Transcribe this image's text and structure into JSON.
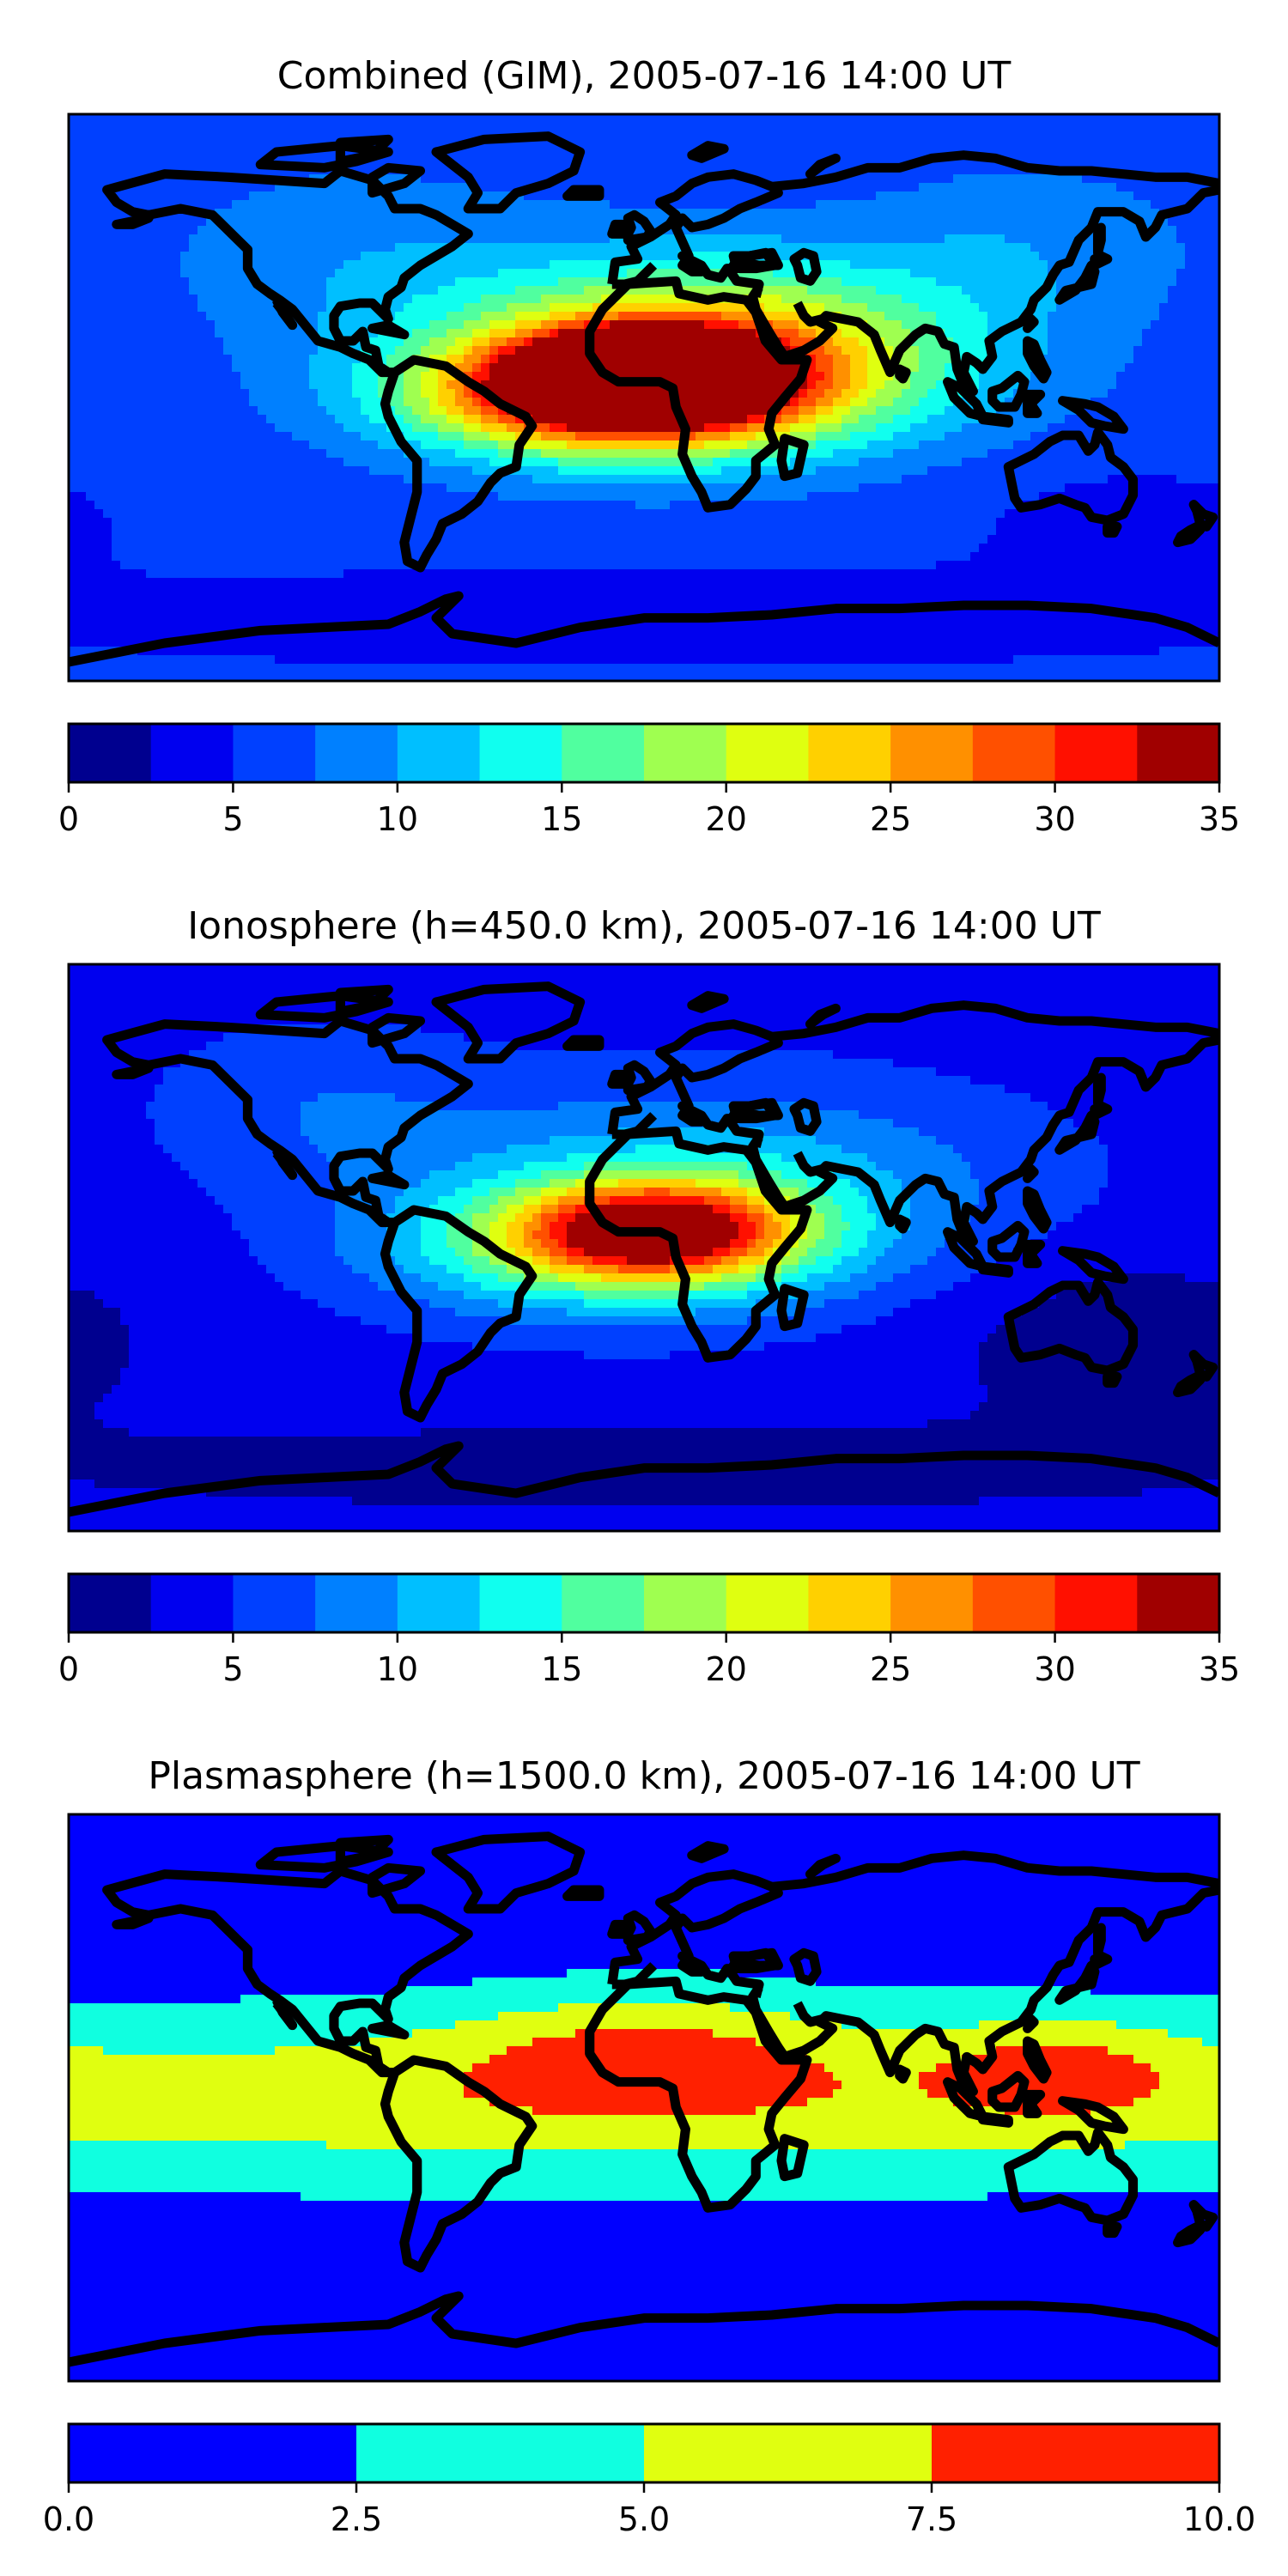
{
  "chart_data": [
    {
      "type": "heatmap",
      "title": "Combined (GIM), 2005-07-16 14:00 UT",
      "xlim": [
        -180,
        180
      ],
      "ylim": [
        -90,
        90
      ],
      "colorbar": {
        "levels": [
          0,
          2.5,
          5,
          7.5,
          10,
          12.5,
          15,
          17.5,
          20,
          22.5,
          25,
          27.5,
          30,
          32.5,
          35
        ],
        "tick_labels": [
          "0",
          "5",
          "10",
          "15",
          "20",
          "25",
          "30",
          "35"
        ],
        "tick_values": [
          0,
          5,
          10,
          15,
          20,
          25,
          30,
          35
        ],
        "colors": [
          "#00008f",
          "#0000ef",
          "#0040ff",
          "#0080ff",
          "#00bfff",
          "#10ffef",
          "#50ff9f",
          "#9fff50",
          "#dfff10",
          "#ffd000",
          "#ff9000",
          "#ff5000",
          "#ff1000",
          "#a00000"
        ]
      },
      "background_value": 6,
      "blobs": [
        {
          "lon": 0,
          "lat": 8,
          "value": 30,
          "slon": 35,
          "slat": 12
        },
        {
          "lon": -10,
          "lat": 0,
          "value": 24,
          "slon": 60,
          "slat": 18
        },
        {
          "lon": 20,
          "lat": 15,
          "value": 20,
          "slon": 80,
          "slat": 28
        },
        {
          "lon": -90,
          "lat": 45,
          "value": 3,
          "slon": 60,
          "slat": 30
        },
        {
          "lon": 120,
          "lat": 50,
          "value": 3,
          "slon": 50,
          "slat": 25
        },
        {
          "lon": 0,
          "lat": -70,
          "value": -3,
          "slon": 200,
          "slat": 15
        },
        {
          "lon": 150,
          "lat": -40,
          "value": -2,
          "slon": 50,
          "slat": 20
        }
      ]
    },
    {
      "type": "heatmap",
      "title": "Ionosphere  (h=450.0 km), 2005-07-16 14:00 UT",
      "xlim": [
        -180,
        180
      ],
      "ylim": [
        -90,
        90
      ],
      "colorbar": {
        "levels": [
          0,
          2.5,
          5,
          7.5,
          10,
          12.5,
          15,
          17.5,
          20,
          22.5,
          25,
          27.5,
          30,
          32.5,
          35
        ],
        "tick_labels": [
          "0",
          "5",
          "10",
          "15",
          "20",
          "25",
          "30",
          "35"
        ],
        "tick_values": [
          0,
          5,
          10,
          15,
          20,
          25,
          30,
          35
        ],
        "colors": [
          "#00008f",
          "#0000ef",
          "#0040ff",
          "#0080ff",
          "#00bfff",
          "#10ffef",
          "#50ff9f",
          "#9fff50",
          "#dfff10",
          "#ffd000",
          "#ff9000",
          "#ff5000",
          "#ff1000",
          "#a00000"
        ]
      },
      "background_value": 4,
      "blobs": [
        {
          "lon": 5,
          "lat": 6,
          "value": 20,
          "slon": 40,
          "slat": 14
        },
        {
          "lon": -10,
          "lat": 0,
          "value": 14,
          "slon": 65,
          "slat": 20
        },
        {
          "lon": 20,
          "lat": 20,
          "value": 8,
          "slon": 90,
          "slat": 30
        },
        {
          "lon": -100,
          "lat": 45,
          "value": 3,
          "slon": 50,
          "slat": 25
        },
        {
          "lon": 150,
          "lat": -30,
          "value": -3,
          "slon": 60,
          "slat": 30
        },
        {
          "lon": 0,
          "lat": -70,
          "value": -3,
          "slon": 200,
          "slat": 15
        }
      ]
    },
    {
      "type": "heatmap",
      "title": "Plasmasphere (h=1500.0 km), 2005-07-16 14:00 UT",
      "xlim": [
        -180,
        180
      ],
      "ylim": [
        -90,
        90
      ],
      "colorbar": {
        "levels": [
          0,
          2.5,
          5,
          7.5,
          10
        ],
        "tick_labels": [
          "0.0",
          "2.5",
          "5.0",
          "7.5",
          "10.0"
        ],
        "tick_values": [
          0,
          2.5,
          5,
          7.5,
          10
        ],
        "colors": [
          "#0000ff",
          "#10ffe0",
          "#e0ff10",
          "#ff2000"
        ]
      },
      "background_value": 1,
      "blobs": [
        {
          "lon": 0,
          "lat": 0,
          "value": 5.5,
          "slon": 500,
          "slat": 28
        },
        {
          "lon": 0,
          "lat": 15,
          "value": 4,
          "slon": 60,
          "slat": 20
        },
        {
          "lon": 130,
          "lat": 10,
          "value": 3.5,
          "slon": 40,
          "slat": 16
        }
      ]
    }
  ]
}
